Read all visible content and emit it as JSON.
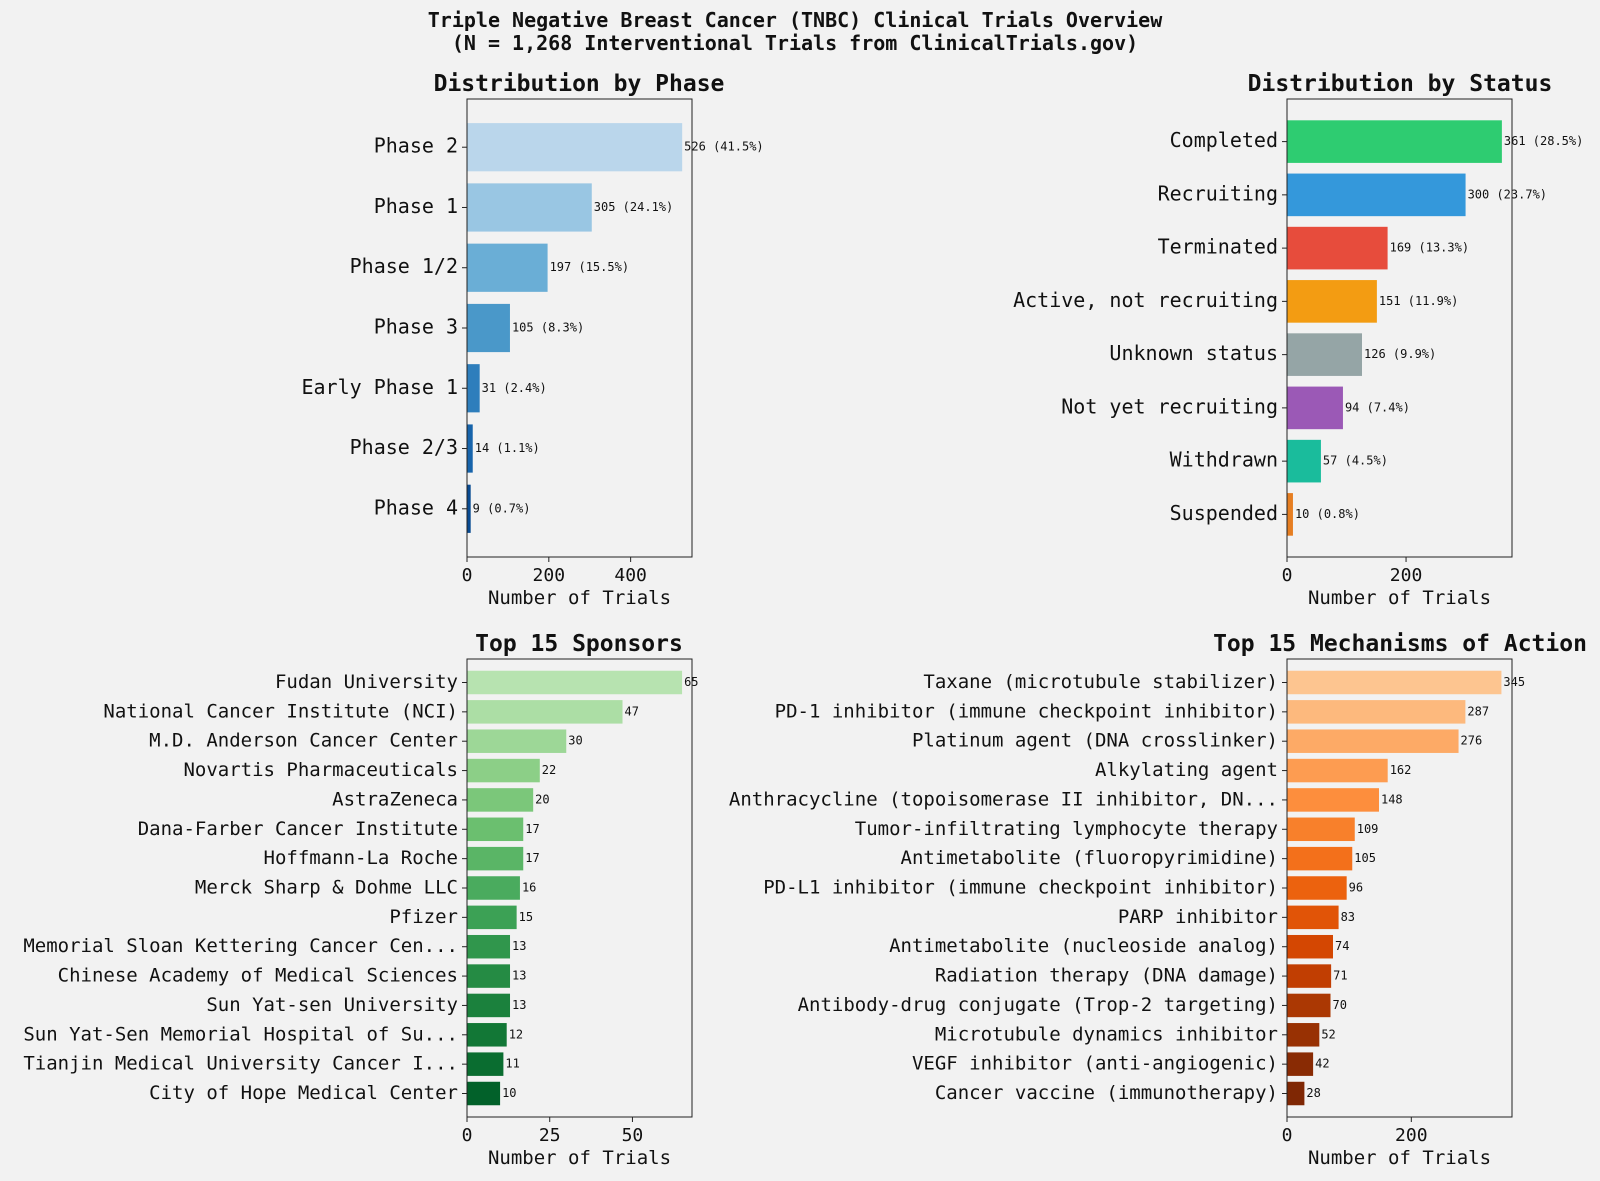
{
  "figure": {
    "title_line1": "Triple Negative Breast Cancer (TNBC) Clinical Trials Overview",
    "title_line2": "(N = 1,268 Interventional Trials from ClinicalTrials.gov)"
  },
  "chart_data": [
    {
      "id": "phase",
      "type": "bar",
      "orientation": "horizontal",
      "title": "Distribution by Phase",
      "xlabel": "Number of Trials",
      "ylabel": "",
      "xlim": [
        0,
        550
      ],
      "xticks": [
        0,
        200,
        400
      ],
      "categories": [
        "Phase 2",
        "Phase 1",
        "Phase 1/2",
        "Phase 3",
        "Early Phase 1",
        "Phase 2/3",
        "Phase 4"
      ],
      "values": [
        526,
        305,
        197,
        105,
        31,
        14,
        9
      ],
      "data_labels": [
        "526 (41.5%)",
        "305 (24.1%)",
        "197 (15.5%)",
        "105 (8.3%)",
        "31 (2.4%)",
        "14 (1.1%)",
        "9 (0.7%)"
      ],
      "colors": [
        "#bad6eb",
        "#99c6e3",
        "#6aaed6",
        "#4a98c9",
        "#2e7ebc",
        "#1764ab",
        "#084a91"
      ],
      "grid": false,
      "legend": "none"
    },
    {
      "id": "status",
      "type": "bar",
      "orientation": "horizontal",
      "title": "Distribution by Status",
      "xlabel": "Number of Trials",
      "ylabel": "",
      "xlim": [
        0,
        378
      ],
      "xticks": [
        0,
        200
      ],
      "categories": [
        "Completed",
        "Recruiting",
        "Terminated",
        "Active, not recruiting",
        "Unknown status",
        "Not yet recruiting",
        "Withdrawn",
        "Suspended"
      ],
      "values": [
        361,
        300,
        169,
        151,
        126,
        94,
        57,
        10
      ],
      "data_labels": [
        "361 (28.5%)",
        "300 (23.7%)",
        "169 (13.3%)",
        "151 (11.9%)",
        "126 (9.9%)",
        "94 (7.4%)",
        "57 (4.5%)",
        "10 (0.8%)"
      ],
      "colors": [
        "#2ecc71",
        "#3498db",
        "#e74c3c",
        "#f39c12",
        "#95a5a6",
        "#9b59b6",
        "#1abc9c",
        "#e67e22"
      ],
      "grid": false,
      "legend": "none"
    },
    {
      "id": "sponsors",
      "type": "bar",
      "orientation": "horizontal",
      "title": "Top 15 Sponsors",
      "xlabel": "Number of Trials",
      "ylabel": "",
      "xlim": [
        0,
        68
      ],
      "xticks": [
        0,
        25,
        50
      ],
      "categories": [
        "Fudan University",
        "National Cancer Institute (NCI)",
        "M.D. Anderson Cancer Center",
        "Novartis Pharmaceuticals",
        "AstraZeneca",
        "Dana-Farber Cancer Institute",
        "Hoffmann-La Roche",
        "Merck Sharp & Dohme LLC",
        "Pfizer",
        "Memorial Sloan Kettering Cancer Cen...",
        "Chinese Academy of Medical Sciences",
        "Sun Yat-sen University",
        "Sun Yat-Sen Memorial Hospital of Su...",
        "Tianjin Medical University Cancer I...",
        "City of Hope Medical Center"
      ],
      "values": [
        65,
        47,
        30,
        22,
        20,
        17,
        17,
        16,
        15,
        13,
        13,
        13,
        12,
        11,
        10
      ],
      "data_labels": [
        "65",
        "47",
        "30",
        "22",
        "20",
        "17",
        "17",
        "16",
        "15",
        "13",
        "13",
        "13",
        "12",
        "11",
        "10"
      ],
      "colors": [
        "#b7e3b0",
        "#acdea5",
        "#9dd797",
        "#8ccf87",
        "#7bc77a",
        "#6bbf6f",
        "#5ab566",
        "#4aab5e",
        "#3ca155",
        "#30964c",
        "#258b44",
        "#1b813d",
        "#127736",
        "#0a6d30",
        "#02612a"
      ],
      "grid": false,
      "legend": "none"
    },
    {
      "id": "mechanisms",
      "type": "bar",
      "orientation": "horizontal",
      "title": "Top 15 Mechanisms of Action",
      "xlabel": "Number of Trials",
      "ylabel": "",
      "xlim": [
        0,
        362
      ],
      "xticks": [
        0,
        200
      ],
      "categories": [
        "Taxane (microtubule stabilizer)",
        "PD-1 inhibitor (immune checkpoint inhibitor)",
        "Platinum agent (DNA crosslinker)",
        "Alkylating agent",
        "Anthracycline (topoisomerase II inhibitor, DN...",
        "Tumor-infiltrating lymphocyte therapy",
        "Antimetabolite (fluoropyrimidine)",
        "PD-L1 inhibitor (immune checkpoint inhibitor)",
        "PARP inhibitor",
        "Antimetabolite (nucleoside analog)",
        "Radiation therapy (DNA damage)",
        "Antibody-drug conjugate (Trop-2 targeting)",
        "Microtubule dynamics inhibitor",
        "VEGF inhibitor (anti-angiogenic)",
        "Cancer vaccine (immunotherapy)"
      ],
      "values": [
        345,
        287,
        276,
        162,
        148,
        109,
        105,
        96,
        83,
        74,
        71,
        70,
        52,
        42,
        28
      ],
      "data_labels": [
        "345",
        "287",
        "276",
        "162",
        "148",
        "109",
        "105",
        "96",
        "83",
        "74",
        "71",
        "70",
        "52",
        "42",
        "28"
      ],
      "colors": [
        "#fdc590",
        "#fdb97d",
        "#fdaa66",
        "#fd9c51",
        "#fd8e3d",
        "#f8802b",
        "#f3701b",
        "#ec620e",
        "#e15407",
        "#d44702",
        "#c13e02",
        "#ab3803",
        "#983103",
        "#892b04",
        "#7f2704"
      ],
      "grid": false,
      "legend": "none"
    }
  ]
}
